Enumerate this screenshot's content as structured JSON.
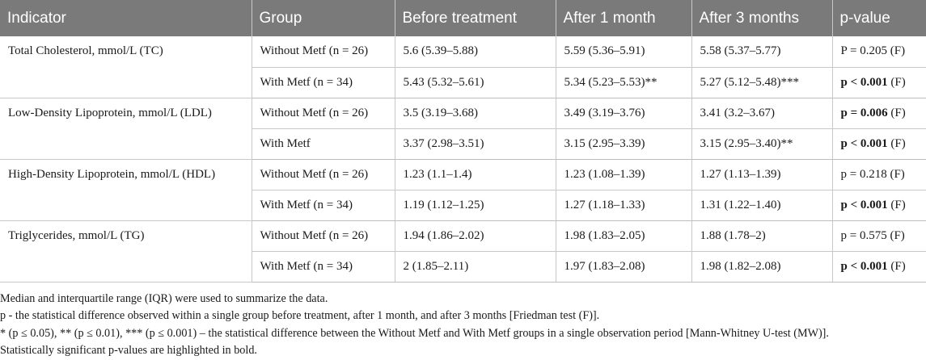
{
  "table": {
    "headers": [
      "Indicator",
      "Group",
      "Before treatment",
      "After 1 month",
      "After 3 months",
      "p-value"
    ],
    "groups": [
      {
        "indicator": "Total Cholesterol, mmol/L (TC)",
        "rows": [
          {
            "group": "Without Metf (n = 26)",
            "before": "5.6 (5.39–5.88)",
            "m1": "5.59 (5.36–5.91)",
            "m3": "5.58 (5.37–5.77)",
            "p_main": "P = 0.205",
            "p_suffix": " (F)",
            "p_bold": false
          },
          {
            "group": "With Metf (n = 34)",
            "before": "5.43 (5.32–5.61)",
            "m1": "5.34 (5.23–5.53)**",
            "m3": "5.27 (5.12–5.48)***",
            "p_main": "p < 0.001",
            "p_suffix": " (F)",
            "p_bold": true
          }
        ]
      },
      {
        "indicator": "Low-Density Lipoprotein, mmol/L (LDL)",
        "rows": [
          {
            "group": "Without Metf (n = 26)",
            "before": "3.5 (3.19–3.68)",
            "m1": "3.49 (3.19–3.76)",
            "m3": "3.41 (3.2–3.67)",
            "p_main": "p = 0.006",
            "p_suffix": " (F)",
            "p_bold": true
          },
          {
            "group": "With Metf",
            "before": "3.37 (2.98–3.51)",
            "m1": "3.15 (2.95–3.39)",
            "m3": "3.15 (2.95–3.40)**",
            "p_main": "p < 0.001",
            "p_suffix": " (F)",
            "p_bold": true
          }
        ]
      },
      {
        "indicator": "High-Density Lipoprotein, mmol/L (HDL)",
        "rows": [
          {
            "group": "Without Metf (n = 26)",
            "before": "1.23 (1.1–1.4)",
            "m1": "1.23 (1.08–1.39)",
            "m3": "1.27 (1.13–1.39)",
            "p_main": "p = 0.218",
            "p_suffix": " (F)",
            "p_bold": false
          },
          {
            "group": "With Metf (n = 34)",
            "before": "1.19 (1.12–1.25)",
            "m1": "1.27 (1.18–1.33)",
            "m3": "1.31 (1.22–1.40)",
            "p_main": "p < 0.001",
            "p_suffix": " (F)",
            "p_bold": true
          }
        ]
      },
      {
        "indicator": "Triglycerides, mmol/L (TG)",
        "rows": [
          {
            "group": "Without Metf (n = 26)",
            "before": "1.94 (1.86–2.02)",
            "m1": "1.98 (1.83–2.05)",
            "m3": "1.88 (1.78–2)",
            "p_main": "p = 0.575",
            "p_suffix": " (F)",
            "p_bold": false
          },
          {
            "group": "With Metf (n = 34)",
            "before": "2 (1.85–2.11)",
            "m1": "1.97 (1.83–2.08)",
            "m3": "1.98 (1.82–2.08)",
            "p_main": "p < 0.001",
            "p_suffix": " (F)",
            "p_bold": true
          }
        ]
      }
    ]
  },
  "notes": [
    "Median and interquartile range (IQR) were used to summarize the data.",
    "p - the statistical difference observed within a single group before treatment, after 1 month, and after 3 months [Friedman test (F)].",
    "* (p ≤ 0.05), ** (p ≤ 0.01), *** (p ≤ 0.001) – the statistical difference between the Without Metf and With Metf groups in a single observation period [Mann-Whitney U-test (MW)].",
    "Statistically significant p-values are highlighted in bold."
  ],
  "colors": {
    "header_bg": "#7a7a7a",
    "header_text": "#ffffff",
    "rule": "#c8c8c8"
  }
}
